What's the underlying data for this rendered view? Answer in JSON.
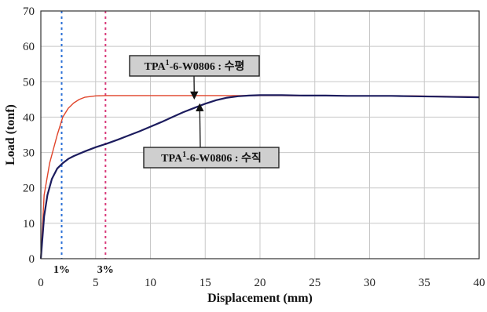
{
  "chart_data": {
    "type": "line",
    "xlabel": "Displacement (mm)",
    "ylabel": "Load (tonf)",
    "xlim": [
      0,
      40
    ],
    "ylim": [
      0,
      70
    ],
    "x_ticks": [
      "0",
      "5",
      "10",
      "15",
      "20",
      "25",
      "30",
      "35",
      "40"
    ],
    "y_ticks": [
      "0",
      "10",
      "20",
      "30",
      "40",
      "50",
      "60",
      "70"
    ],
    "grid": true,
    "series": [
      {
        "name": "TPA¹-6-W0806 : 수평",
        "color": "#e0442a",
        "x": [
          0,
          0.3,
          0.8,
          1.5,
          2.0,
          2.5,
          3.0,
          3.5,
          4,
          5,
          6,
          8,
          10,
          12,
          14,
          16,
          18,
          20,
          22,
          24,
          26,
          28,
          30,
          32,
          34,
          36,
          38,
          40
        ],
        "y": [
          0,
          18,
          27,
          35,
          40,
          42.5,
          44,
          45,
          45.6,
          46,
          46.1,
          46.1,
          46.1,
          46.1,
          46.1,
          46.1,
          46.1,
          46.1,
          46.1,
          46.0,
          46.0,
          46.0,
          46.0,
          46.0,
          46.0,
          45.9,
          45.8,
          45.7
        ]
      },
      {
        "name": "TPA¹-6-W0806 : 수직",
        "color": "#1c1c5e",
        "x": [
          0,
          0.3,
          0.6,
          1.0,
          1.5,
          2.0,
          2.5,
          3,
          4,
          5,
          6,
          7,
          8,
          9,
          10,
          11,
          12,
          13,
          14,
          15,
          16,
          17,
          18,
          19,
          20,
          22,
          24,
          26,
          28,
          30,
          32,
          34,
          36,
          38,
          40
        ],
        "y": [
          0,
          12,
          18,
          22.5,
          25.5,
          27,
          28.2,
          29,
          30.3,
          31.5,
          32.5,
          33.6,
          34.8,
          36,
          37.3,
          38.6,
          40,
          41.4,
          42.6,
          43.8,
          44.8,
          45.5,
          45.9,
          46.1,
          46.2,
          46.2,
          46.1,
          46.1,
          46.0,
          46.0,
          46.0,
          45.9,
          45.8,
          45.7,
          45.6
        ]
      }
    ],
    "reference_lines": [
      {
        "x": 1.9,
        "label": "1%",
        "color": "#2a6fd6"
      },
      {
        "x": 5.9,
        "label": "3%",
        "color": "#d83a7a"
      }
    ],
    "annotations": [
      {
        "target_series": 0,
        "text_main": "TPA",
        "text_sup": "1",
        "text_rest": "-6-W0806 : 수평",
        "point": [
          14,
          46.1
        ]
      },
      {
        "target_series": 1,
        "text_main": "TPA",
        "text_sup": "1",
        "text_rest": "-6-W0806 : 수직",
        "point": [
          14.5,
          42.8
        ]
      }
    ]
  }
}
